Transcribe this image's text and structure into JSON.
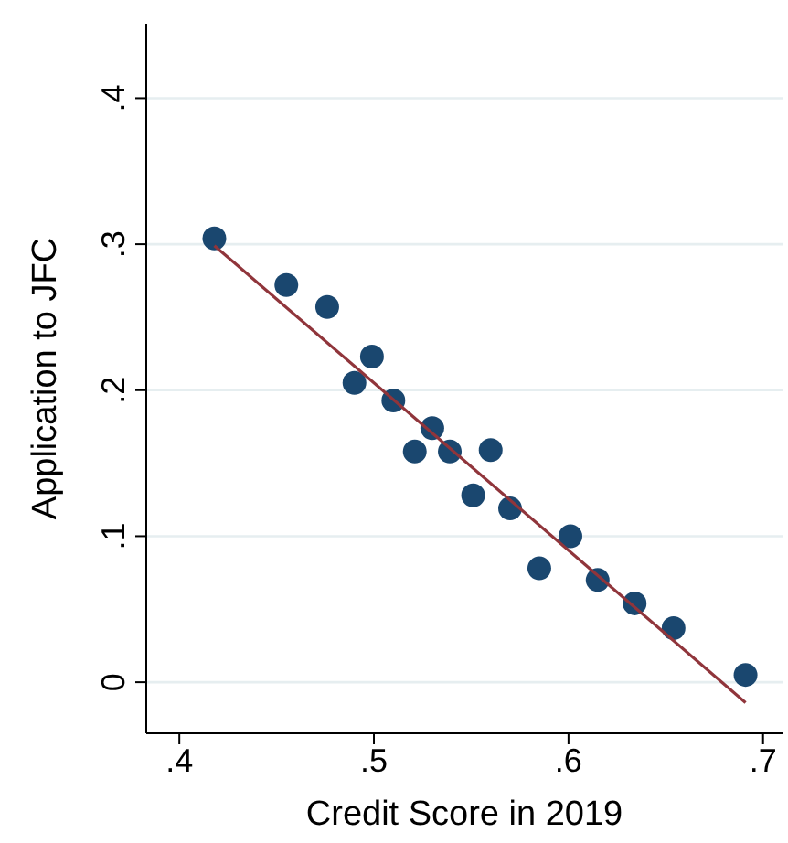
{
  "chart_data": {
    "type": "scatter",
    "xlabel": "Credit Score in 2019",
    "ylabel": "Application to JFC",
    "xlim": [
      0.383,
      0.71
    ],
    "xticks": [
      {
        "value": 0.4,
        "label": ".4"
      },
      {
        "value": 0.5,
        "label": ".5"
      },
      {
        "value": 0.6,
        "label": ".6"
      },
      {
        "value": 0.7,
        "label": ".7"
      }
    ],
    "ylim": [
      -0.035,
      0.451
    ],
    "yticks": [
      0,
      {
        "value": 0.1,
        "label": ".1"
      },
      {
        "value": 0.2,
        "label": ".2"
      },
      {
        "value": 0.3,
        "label": ".3"
      },
      {
        "value": 0.4,
        "label": ".4"
      }
    ],
    "grid": "y",
    "series": [
      {
        "marker": "circle",
        "color": "#1a476f",
        "x": [
          0.418,
          0.455,
          0.476,
          0.49,
          0.499,
          0.51,
          0.521,
          0.53,
          0.539,
          0.551,
          0.56,
          0.57,
          0.585,
          0.601,
          0.615,
          0.634,
          0.654,
          0.691
        ],
        "values": [
          0.304,
          0.272,
          0.257,
          0.205,
          0.223,
          0.193,
          0.158,
          0.174,
          0.158,
          0.128,
          0.159,
          0.119,
          0.078,
          0.1,
          0.07,
          0.054,
          0.037,
          0.005
        ]
      },
      {
        "type": "line",
        "color": "#90353b",
        "x": [
          0.418,
          0.691
        ],
        "values": [
          0.299,
          -0.014
        ]
      }
    ]
  }
}
